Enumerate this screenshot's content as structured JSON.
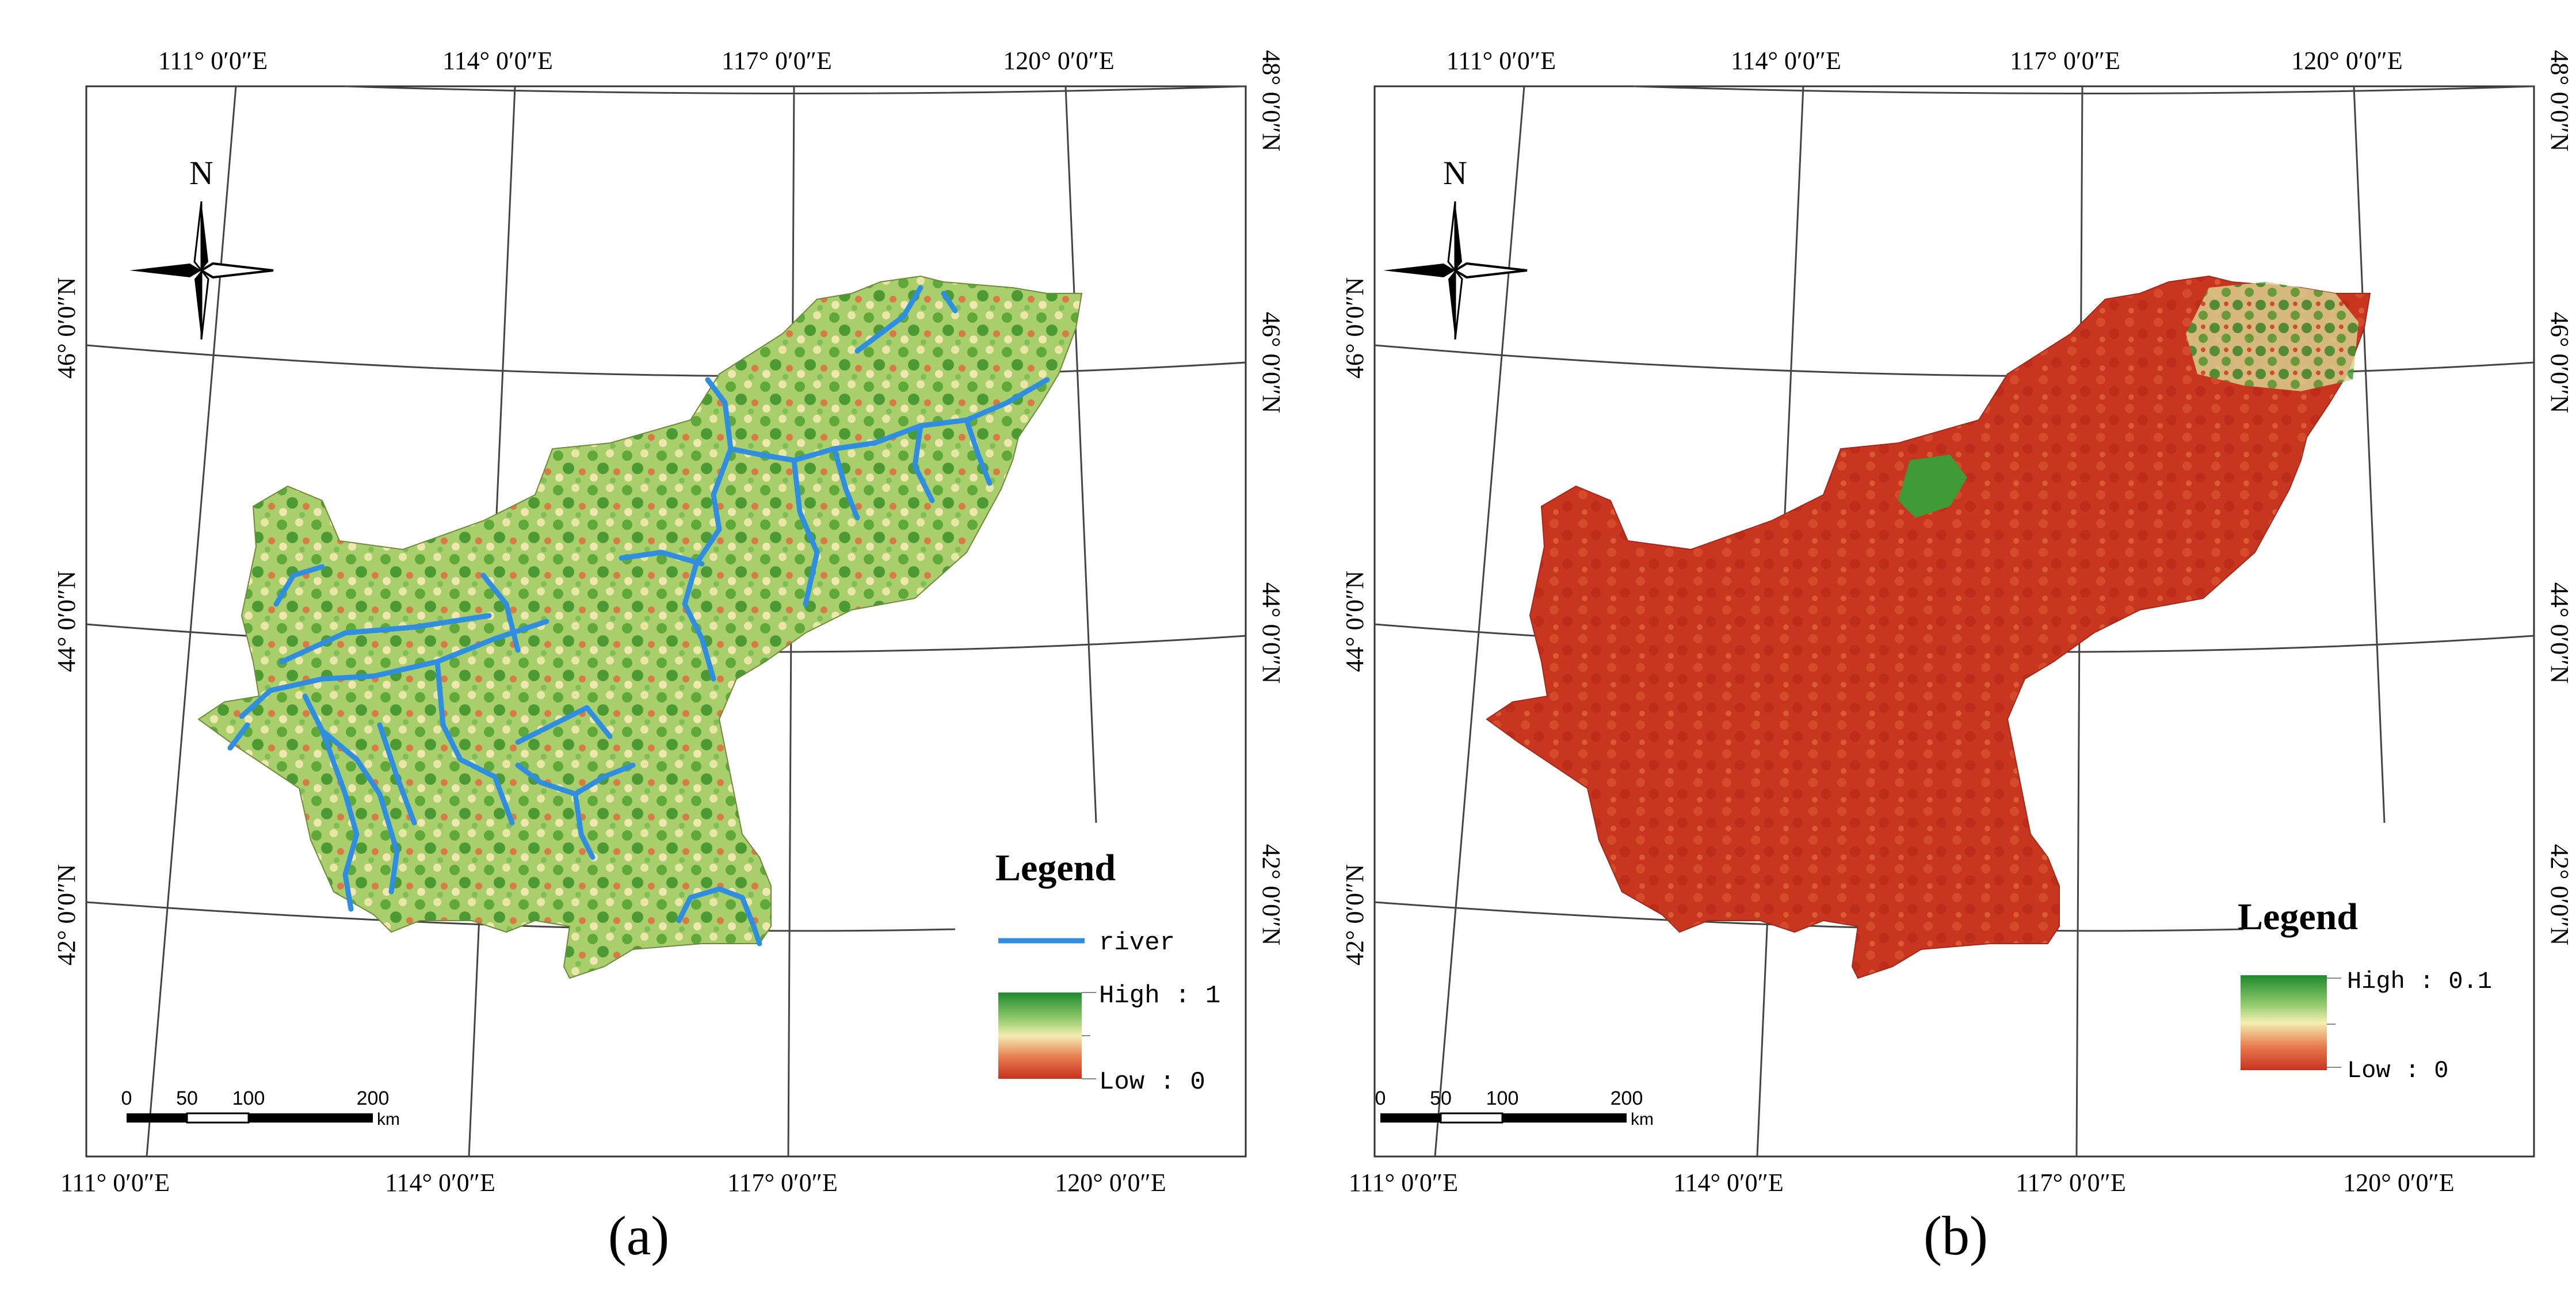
{
  "figure": {
    "panels": [
      {
        "id": "a",
        "label": "(a)",
        "top_lon_labels": [
          "111° 0′0″E",
          "114° 0′0″E",
          "117° 0′0″E",
          "120° 0′0″E"
        ],
        "bottom_lon_labels": [
          "111° 0′0″E",
          "114° 0′0″E",
          "117° 0′0″E",
          "120° 0′0″E"
        ],
        "left_lat_labels": [
          "46° 0′0″N",
          "44° 0′0″N",
          "42° 0′0″N"
        ],
        "right_lat_labels": [
          "48° 0′0″N",
          "46° 0′0″N",
          "44° 0′0″N",
          "42° 0′0″N"
        ],
        "north_label": "N",
        "scale_bar": {
          "ticks": [
            "0",
            "50",
            "100",
            "200"
          ],
          "unit": "km"
        },
        "legend": {
          "title": "Legend",
          "river_label": "river",
          "high_label": "High : 1",
          "low_label": "Low : 0",
          "river_color": "#2f8ee0",
          "gradient_colors": [
            "#1f8a2e",
            "#8fc96a",
            "#f4efb2",
            "#e87b4e",
            "#c8321f"
          ]
        }
      },
      {
        "id": "b",
        "label": "(b)",
        "top_lon_labels": [
          "111° 0′0″E",
          "114° 0′0″E",
          "117° 0′0″E",
          "120° 0′0″E"
        ],
        "bottom_lon_labels": [
          "111° 0′0″E",
          "114° 0′0″E",
          "117° 0′0″E",
          "120° 0′0″E"
        ],
        "left_lat_labels": [
          "46° 0′0″N",
          "44° 0′0″N",
          "42° 0′0″N"
        ],
        "right_lat_labels": [
          "48° 0′0″N",
          "46° 0′0″N",
          "44° 0′0″N",
          "42° 0′0″N"
        ],
        "north_label": "N",
        "scale_bar": {
          "ticks": [
            "0",
            "50",
            "100",
            "200"
          ],
          "unit": "km"
        },
        "legend": {
          "title": "Legend",
          "high_label": "High : 0.1",
          "low_label": "Low : 0",
          "gradient_colors": [
            "#1f8a2e",
            "#8fc96a",
            "#f4efb2",
            "#e87b4e",
            "#c8321f"
          ]
        }
      }
    ]
  }
}
